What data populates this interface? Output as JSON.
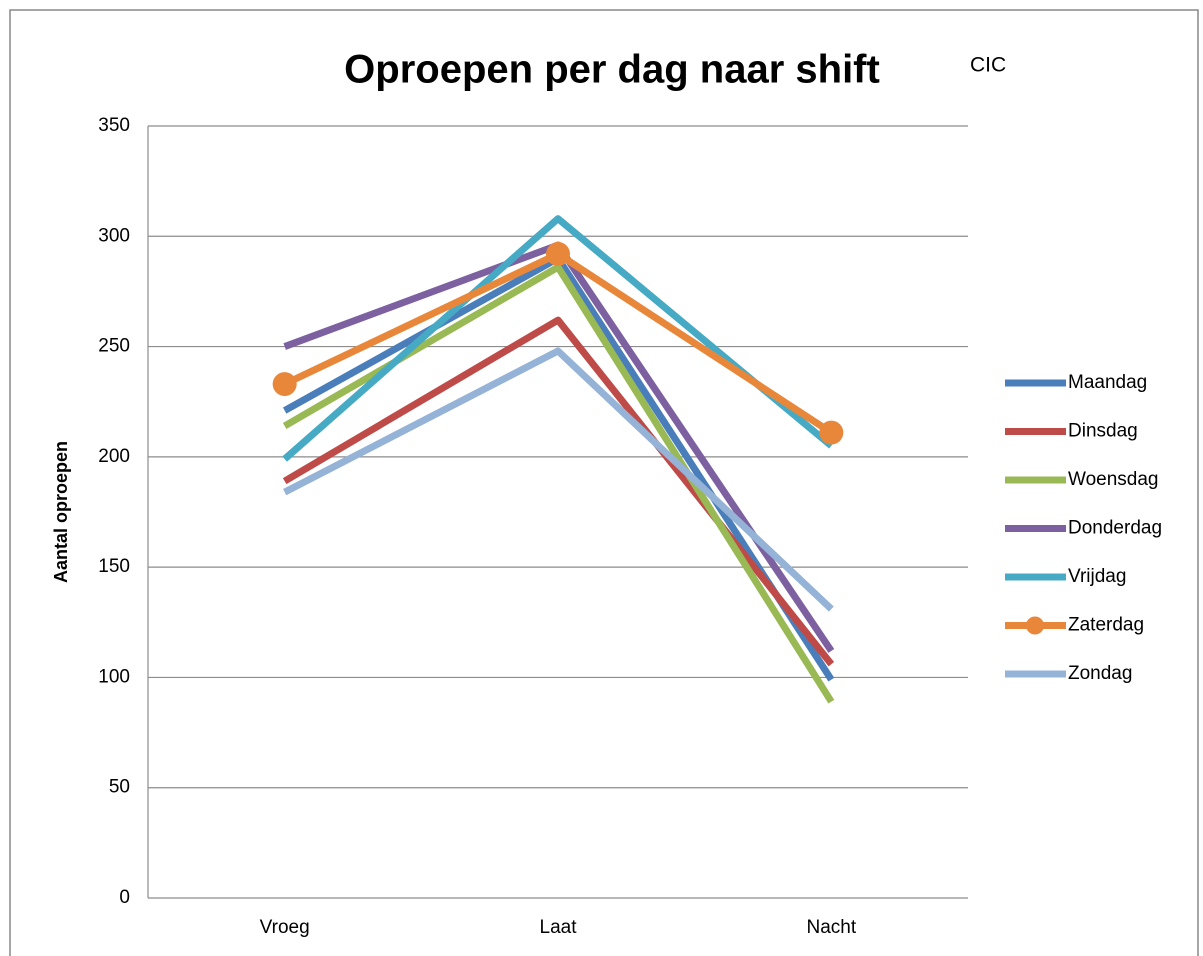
{
  "chart_data": {
    "type": "line",
    "title": "Oproepen per dag naar shift",
    "annotation": "CIC",
    "y_label": "Aantal oproepen",
    "categories": [
      "Vroeg",
      "Laat",
      "Nacht"
    ],
    "series": [
      {
        "name": "Maandag",
        "color": "#4a7ebb",
        "values": [
          221,
          290,
          99
        ]
      },
      {
        "name": "Dinsdag",
        "color": "#be4b48",
        "values": [
          189,
          262,
          106
        ]
      },
      {
        "name": "Woensdag",
        "color": "#98b954",
        "values": [
          214,
          286,
          89
        ]
      },
      {
        "name": "Donderdag",
        "color": "#7d60a0",
        "values": [
          250,
          296,
          112
        ]
      },
      {
        "name": "Vrijdag",
        "color": "#46aac5",
        "values": [
          199,
          308,
          205
        ]
      },
      {
        "name": "Zaterdag",
        "color": "#e8873a",
        "values": [
          233,
          292,
          211
        ],
        "marker": true
      },
      {
        "name": "Zondag",
        "color": "#95b3d7",
        "values": [
          184,
          248,
          131
        ]
      }
    ],
    "ylim": [
      0,
      350
    ],
    "yticks": [
      0,
      50,
      100,
      150,
      200,
      250,
      300,
      350
    ],
    "grid": true,
    "legend": "right"
  }
}
